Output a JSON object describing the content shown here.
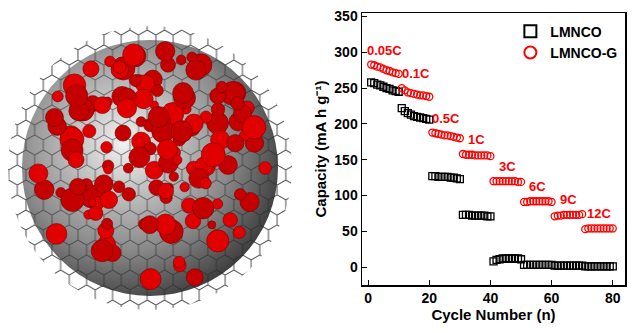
{
  "chart_data": {
    "type": "scatter",
    "xlabel": "Cycle Number (n)",
    "ylabel": "Capacity (mA h g⁻¹)",
    "x": [
      1,
      2,
      3,
      4,
      5,
      6,
      7,
      8,
      9,
      10,
      11,
      12,
      13,
      14,
      15,
      16,
      17,
      18,
      19,
      20,
      21,
      22,
      23,
      24,
      25,
      26,
      27,
      28,
      29,
      30,
      31,
      32,
      33,
      34,
      35,
      36,
      37,
      38,
      39,
      40,
      41,
      42,
      43,
      44,
      45,
      46,
      47,
      48,
      49,
      50,
      51,
      52,
      53,
      54,
      55,
      56,
      57,
      58,
      59,
      60,
      61,
      62,
      63,
      64,
      65,
      66,
      67,
      68,
      69,
      70,
      71,
      72,
      73,
      74,
      75,
      76,
      77,
      78,
      79,
      80
    ],
    "xlim": [
      -2,
      84
    ],
    "xticks": [
      0,
      20,
      40,
      60,
      80
    ],
    "ylim": [
      -25,
      355
    ],
    "yticks": [
      0,
      50,
      100,
      150,
      200,
      250,
      300,
      350
    ],
    "grid": false,
    "legend": "upper right",
    "annotations": [
      "0.05C",
      "0.1C",
      "0.5C",
      "1C",
      "3C",
      "6C",
      "9C",
      "12C"
    ],
    "series": [
      {
        "name": "LMNCO",
        "color": "#000000",
        "marker": "square-open",
        "values": [
          258,
          257,
          255,
          254,
          252,
          250,
          249,
          247,
          246,
          245,
          222,
          218,
          215,
          213,
          211,
          210,
          209,
          208,
          207,
          206,
          127,
          127,
          126,
          126,
          126,
          126,
          125,
          125,
          124,
          123,
          73,
          73,
          73,
          72,
          72,
          72,
          72,
          72,
          71,
          71,
          8,
          10,
          11,
          12,
          12,
          12,
          12,
          12,
          12,
          11,
          3,
          3,
          3,
          3,
          3,
          3,
          3,
          3,
          3,
          3,
          2,
          2,
          2,
          2,
          2,
          2,
          2,
          2,
          2,
          2,
          1,
          1,
          1,
          1,
          1,
          1,
          1,
          1,
          1,
          1
        ]
      },
      {
        "name": "LMNCO-G",
        "color": "#ff0000",
        "marker": "circle-open",
        "values": [
          283,
          282,
          280,
          279,
          277,
          275,
          274,
          272,
          271,
          270,
          250,
          247,
          244,
          243,
          242,
          241,
          240,
          240,
          239,
          238,
          188,
          187,
          186,
          185,
          184,
          184,
          183,
          182,
          181,
          180,
          158,
          157,
          157,
          157,
          156,
          156,
          156,
          156,
          156,
          155,
          120,
          120,
          120,
          120,
          120,
          120,
          120,
          120,
          119,
          119,
          91,
          91,
          92,
          92,
          92,
          92,
          92,
          92,
          92,
          91,
          71,
          72,
          72,
          73,
          73,
          73,
          73,
          73,
          73,
          74,
          53,
          54,
          54,
          54,
          54,
          54,
          54,
          54,
          54,
          54
        ]
      }
    ]
  }
}
